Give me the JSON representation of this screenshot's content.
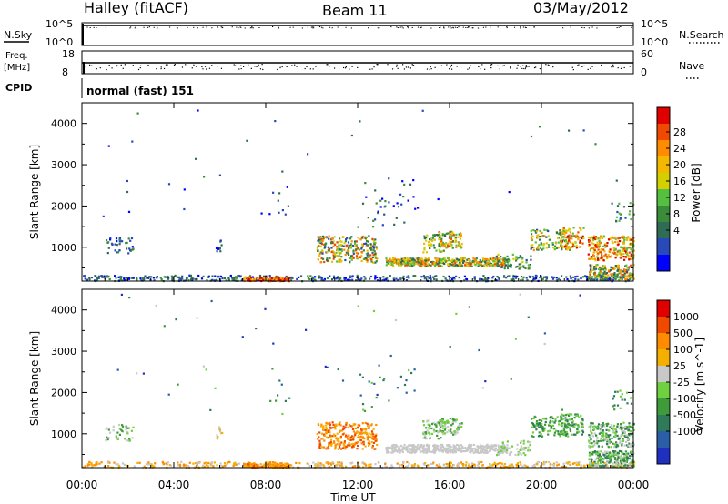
{
  "header": {
    "station": "Halley (fitACF)",
    "beam": "Beam 11",
    "date": "03/May/2012"
  },
  "top_panels": {
    "nsky_label": "N.Sky",
    "nsky_ticks": [
      "10^5",
      "10^0"
    ],
    "nsearch_label": "N.Search",
    "nsearch_ticks": [
      "10^5",
      "10^0"
    ],
    "freq_label": "Freq.",
    "freq_unit": "[MHz]",
    "freq_ticks": [
      "18",
      "8"
    ],
    "nave_label": "Nave",
    "nave_ticks": [
      "60",
      "0"
    ],
    "cpid_label": "CPID",
    "cpid_value": "normal (fast) 151"
  },
  "chart_data": [
    {
      "type": "heatmap",
      "name": "power",
      "ylabel": "Slant Range [km]",
      "yticks": [
        "4000",
        "3000",
        "2000",
        "1000"
      ],
      "colorbar_label": "Power [dB]",
      "colorbar_ticks": [
        "28",
        "24",
        "20",
        "16",
        "12",
        "8",
        "4"
      ],
      "colors": [
        "#0000ff",
        "#2a49b8",
        "#2f6b55",
        "#3a8c3a",
        "#55c040",
        "#d4d000",
        "#f3b800",
        "#ff8c00",
        "#f04a00",
        "#e00000"
      ],
      "ylim": [
        180,
        4500
      ],
      "xlim": [
        0,
        24
      ]
    },
    {
      "type": "heatmap",
      "name": "velocity",
      "ylabel": "Slant Range [km]",
      "yticks": [
        "4000",
        "3000",
        "2000",
        "1000"
      ],
      "colorbar_label": "Velocity [m s^-1]",
      "colorbar_ticks": [
        "1000",
        "500",
        "100",
        "25",
        "-25",
        "-100",
        "-500",
        "-1000"
      ],
      "colors": [
        "#1f2fbf",
        "#2a5fa8",
        "#2e7a5a",
        "#3f9b3a",
        "#6fd040",
        "#c8c8c8",
        "#f3b000",
        "#ff8c00",
        "#f04a00",
        "#e00000"
      ],
      "ylim": [
        180,
        4500
      ],
      "xlim": [
        0,
        24
      ]
    }
  ],
  "xaxis": {
    "ticks": [
      "00:00",
      "04:00",
      "08:00",
      "12:00",
      "16:00",
      "20:00",
      "00:00"
    ],
    "label": "Time UT"
  }
}
